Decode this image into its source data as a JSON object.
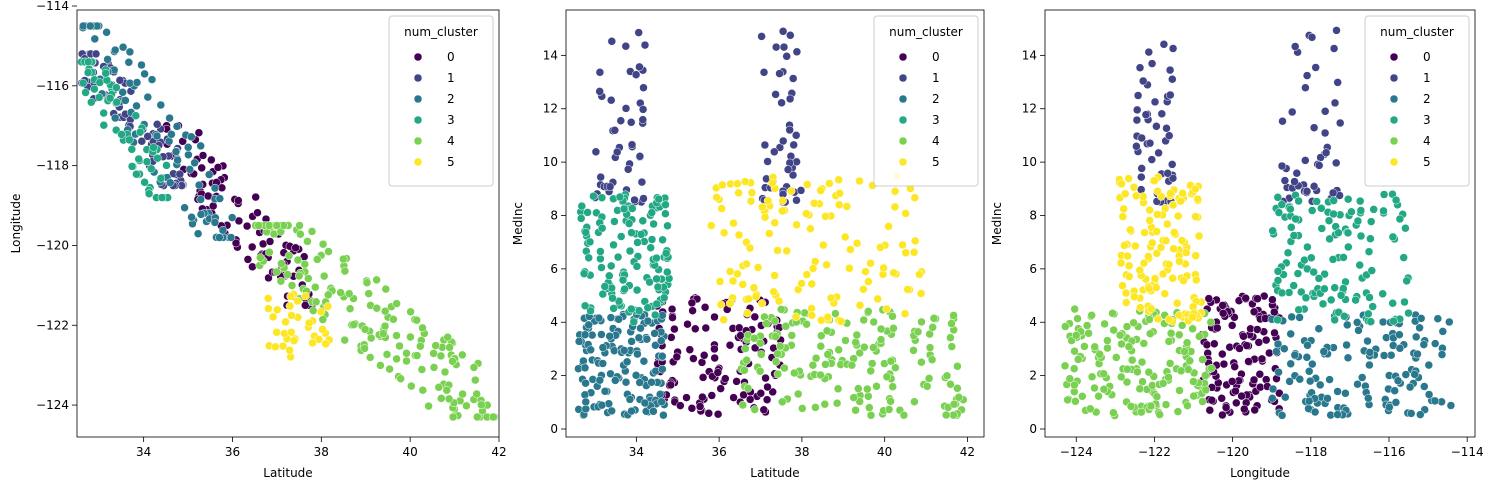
{
  "colors": {
    "0": "#440154",
    "1": "#414487",
    "2": "#2a788e",
    "3": "#22a884",
    "4": "#7ad151",
    "5": "#fde725"
  },
  "chart_data": [
    {
      "type": "scatter",
      "xlabel": "Latitude",
      "ylabel": "Longitude",
      "xlim": [
        32.5,
        42
      ],
      "ylim": [
        -124.8,
        -114.1
      ],
      "xticks": [
        34,
        36,
        38,
        40,
        42
      ],
      "yticks": [
        -124,
        -122,
        -120,
        -118,
        -116,
        -114
      ],
      "legend": {
        "title": "num_cluster",
        "position": "top-right",
        "entries": [
          "0",
          "1",
          "2",
          "3",
          "4",
          "5"
        ]
      },
      "clusters": [
        {
          "name": "0",
          "color": "#440154",
          "count": 95,
          "x_range": [
            34.5,
            37.8
          ],
          "y_range": [
            -121.5,
            -117.0
          ],
          "trend": "diagonal"
        },
        {
          "name": "1",
          "color": "#414487",
          "count": 70,
          "x_range": [
            32.6,
            34.9
          ],
          "y_range": [
            -118.5,
            -115.2
          ],
          "trend": "diagonal"
        },
        {
          "name": "2",
          "color": "#2a788e",
          "count": 90,
          "x_range": [
            32.6,
            36.0
          ],
          "y_range": [
            -119.8,
            -114.5
          ],
          "trend": "diagonal"
        },
        {
          "name": "3",
          "color": "#22a884",
          "count": 60,
          "x_range": [
            32.6,
            34.6
          ],
          "y_range": [
            -118.8,
            -115.4
          ],
          "trend": "diagonal"
        },
        {
          "name": "4",
          "color": "#7ad151",
          "count": 170,
          "x_range": [
            36.5,
            41.9
          ],
          "y_range": [
            -124.3,
            -119.5
          ],
          "trend": "diagonal"
        },
        {
          "name": "5",
          "color": "#fde725",
          "count": 35,
          "x_range": [
            36.8,
            38.3
          ],
          "y_range": [
            -122.8,
            -121.2
          ],
          "trend": "none"
        }
      ]
    },
    {
      "type": "scatter",
      "xlabel": "Latitude",
      "ylabel": "MedInc",
      "xlim": [
        32.3,
        42.4
      ],
      "ylim": [
        -0.3,
        15.7
      ],
      "xticks": [
        34,
        36,
        38,
        40,
        42
      ],
      "yticks": [
        0,
        2,
        4,
        6,
        8,
        10,
        12,
        14
      ],
      "legend": {
        "title": "num_cluster",
        "position": "top-right",
        "entries": [
          "0",
          "1",
          "2",
          "3",
          "4",
          "5"
        ]
      },
      "clusters": [
        {
          "name": "0",
          "color": "#440154",
          "count": 130,
          "x_range": [
            34.5,
            37.5
          ],
          "y_range": [
            0.5,
            5.0
          ],
          "trend": "none"
        },
        {
          "name": "1",
          "color": "#414487",
          "count": 95,
          "x_range": [
            32.8,
            38.8
          ],
          "y_range": [
            8.5,
            15.0
          ],
          "groups": [
            [
              33.0,
              34.3
            ],
            [
              37.0,
              38.0
            ]
          ],
          "trend": "none"
        },
        {
          "name": "2",
          "color": "#2a788e",
          "count": 140,
          "x_range": [
            32.6,
            34.7
          ],
          "y_range": [
            0.5,
            4.3
          ],
          "trend": "none"
        },
        {
          "name": "3",
          "color": "#22a884",
          "count": 130,
          "x_range": [
            32.6,
            34.8
          ],
          "y_range": [
            4.0,
            8.8
          ],
          "trend": "none"
        },
        {
          "name": "4",
          "color": "#7ad151",
          "count": 170,
          "x_range": [
            36.5,
            41.9
          ],
          "y_range": [
            0.5,
            4.5
          ],
          "trend": "none"
        },
        {
          "name": "5",
          "color": "#fde725",
          "count": 130,
          "x_range": [
            35.8,
            41.0
          ],
          "y_range": [
            4.0,
            9.5
          ],
          "trend": "none"
        }
      ]
    },
    {
      "type": "scatter",
      "xlabel": "Longitude",
      "ylabel": "MedInc",
      "xlim": [
        -124.8,
        -113.8
      ],
      "ylim": [
        -0.3,
        15.7
      ],
      "xticks": [
        -124,
        -122,
        -120,
        -118,
        -116,
        -114
      ],
      "yticks": [
        0,
        2,
        4,
        6,
        8,
        10,
        12,
        14
      ],
      "legend": {
        "title": "num_cluster",
        "position": "top-right",
        "entries": [
          "0",
          "1",
          "2",
          "3",
          "4",
          "5"
        ]
      },
      "clusters": [
        {
          "name": "0",
          "color": "#440154",
          "count": 130,
          "x_range": [
            -120.8,
            -118.8
          ],
          "y_range": [
            0.5,
            5.0
          ],
          "trend": "none"
        },
        {
          "name": "1",
          "color": "#414487",
          "count": 95,
          "x_range": [
            -122.5,
            -116.5
          ],
          "y_range": [
            8.5,
            15.0
          ],
          "groups": [
            [
              -122.5,
              -121.5
            ],
            [
              -118.8,
              -117.2
            ]
          ],
          "trend": "none"
        },
        {
          "name": "2",
          "color": "#2a788e",
          "count": 140,
          "x_range": [
            -119.0,
            -114.4
          ],
          "y_range": [
            0.5,
            4.3
          ],
          "trend": "none"
        },
        {
          "name": "3",
          "color": "#22a884",
          "count": 130,
          "x_range": [
            -119.0,
            -115.5
          ],
          "y_range": [
            4.0,
            8.8
          ],
          "trend": "none"
        },
        {
          "name": "4",
          "color": "#7ad151",
          "count": 170,
          "x_range": [
            -124.3,
            -120.5
          ],
          "y_range": [
            0.5,
            4.5
          ],
          "trend": "none"
        },
        {
          "name": "5",
          "color": "#fde725",
          "count": 130,
          "x_range": [
            -122.9,
            -120.8
          ],
          "y_range": [
            4.0,
            9.5
          ],
          "trend": "none"
        }
      ]
    }
  ]
}
